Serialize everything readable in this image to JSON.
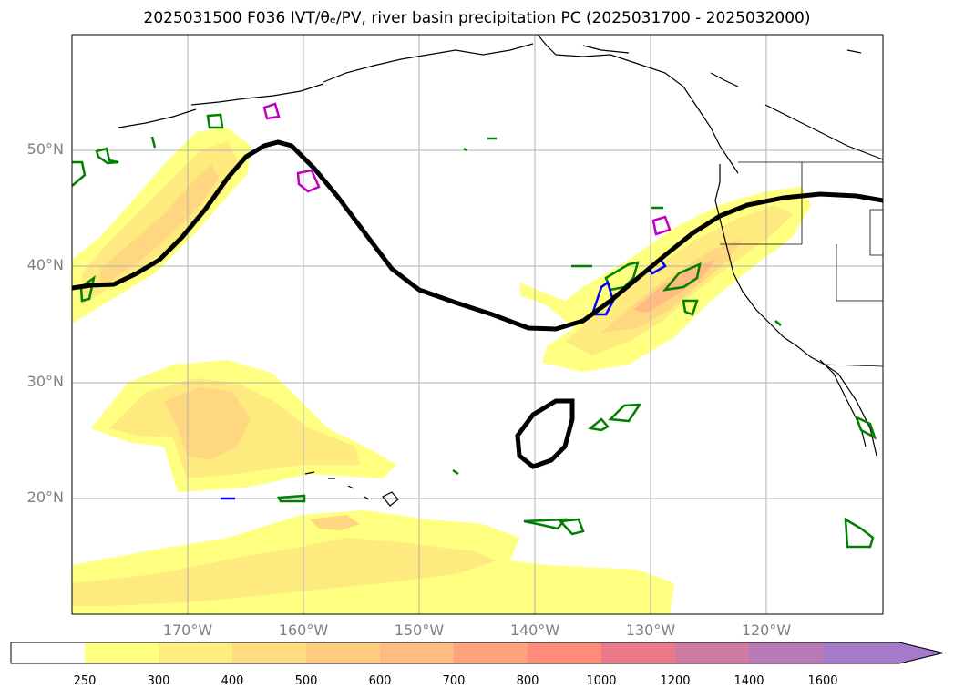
{
  "title": "2025031500 F036 IVT/θₑ/PV, river basin precipitation PC (2025031700 - 2025032000)",
  "lat_labels": [
    "50°N",
    "40°N",
    "30°N",
    "20°N"
  ],
  "lon_labels": [
    "170°W",
    "160°W",
    "150°W",
    "140°W",
    "130°W",
    "120°W"
  ],
  "colorbar": {
    "levels": [
      "250",
      "300",
      "400",
      "500",
      "600",
      "700",
      "800",
      "1000",
      "1200",
      "1400",
      "1600"
    ],
    "colors": [
      "#ffffff",
      "#ffff80",
      "#ffed80",
      "#ffdc80",
      "#ffcc80",
      "#ffbb80",
      "#ffa37d",
      "#ff8c7a",
      "#e87a8a",
      "#cf7aa0",
      "#b97ab8",
      "#a57ac8"
    ]
  },
  "colors": {
    "ivt_low": "#ffff80",
    "ivt_mid": "#ffdc80",
    "ivt_high": "#ffbb80",
    "pv_contour": "#000000",
    "green_contour": "#008000",
    "blue_contour": "#0000ff",
    "magenta_contour": "#c000c0",
    "grid": "#b0b0b0"
  }
}
